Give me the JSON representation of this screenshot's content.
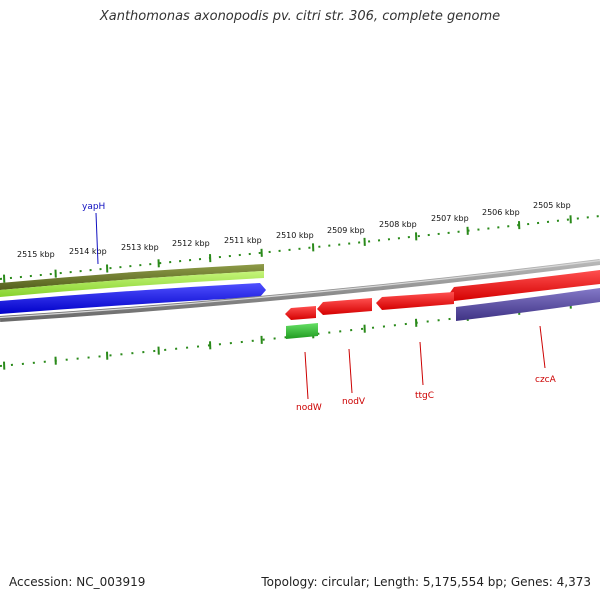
{
  "title": "Xanthomonas axonopodis pv. citri str. 306, complete genome",
  "footer": {
    "accession": "Accession: NC_003919",
    "summary": "Topology: circular; Length: 5,175,554 bp; Genes: 4,373"
  },
  "scale_labels": [
    "2515 kbp",
    "2514 kbp",
    "2513 kbp",
    "2512 kbp",
    "2511 kbp",
    "2510 kbp",
    "2509 kbp",
    "2508 kbp",
    "2507 kbp",
    "2506 kbp",
    "2505 kbp"
  ],
  "genes": [
    {
      "name": "yapH",
      "color": "#1010c0"
    },
    {
      "name": "nodW",
      "color": "#cc0000"
    },
    {
      "name": "nodV",
      "color": "#cc0000"
    },
    {
      "name": "ttgC",
      "color": "#cc0000"
    },
    {
      "name": "czcA",
      "color": "#cc0000"
    }
  ],
  "colors": {
    "backbone": "#8a8a8a",
    "ticks": "#2a8a1a",
    "olive_feature": "#6b7a2a",
    "lime_feature": "#9ae040",
    "blue_feature": "#1a1ae0",
    "red_feature": "#ee1111",
    "green_feature": "#33bb33",
    "purple_feature": "#5a4aa0"
  }
}
